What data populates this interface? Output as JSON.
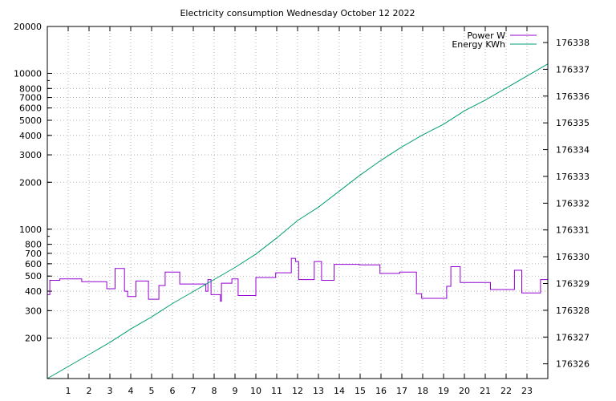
{
  "chart_data": {
    "type": "line",
    "title": "Electricity consumption Wednesday October 12 2022",
    "xlabel": "",
    "ylabel": "",
    "x_range": [
      0,
      24
    ],
    "x_ticks": [
      1,
      2,
      3,
      4,
      5,
      6,
      7,
      8,
      9,
      10,
      11,
      12,
      13,
      14,
      15,
      16,
      17,
      18,
      19,
      20,
      21,
      22,
      23
    ],
    "y_left": {
      "scale": "log",
      "range": [
        110,
        20000
      ],
      "ticks": [
        200,
        300,
        400,
        500,
        600,
        700,
        800,
        1000,
        2000,
        3000,
        4000,
        5000,
        6000,
        7000,
        8000,
        10000,
        20000
      ]
    },
    "y_right": {
      "scale": "linear",
      "range": [
        176325.45,
        176338.6
      ],
      "ticks": [
        176326,
        176327,
        176328,
        176329,
        176330,
        176331,
        176332,
        176333,
        176334,
        176335,
        176336,
        176337,
        176338
      ]
    },
    "grid": true,
    "legend_position": "top-right",
    "series": [
      {
        "name": "Power W",
        "axis": "left",
        "color": "#9400d3",
        "step": true,
        "points": [
          [
            0,
            380
          ],
          [
            0.12,
            470
          ],
          [
            0.6,
            480
          ],
          [
            1.65,
            460
          ],
          [
            2.85,
            415
          ],
          [
            3.25,
            560
          ],
          [
            3.7,
            400
          ],
          [
            3.85,
            370
          ],
          [
            4.25,
            465
          ],
          [
            4.85,
            355
          ],
          [
            5.35,
            435
          ],
          [
            5.65,
            530
          ],
          [
            6.35,
            445
          ],
          [
            7.6,
            400
          ],
          [
            7.7,
            475
          ],
          [
            7.85,
            380
          ],
          [
            8.3,
            345
          ],
          [
            8.35,
            450
          ],
          [
            8.85,
            480
          ],
          [
            9.15,
            375
          ],
          [
            10.0,
            490
          ],
          [
            10.95,
            525
          ],
          [
            11.7,
            650
          ],
          [
            11.9,
            620
          ],
          [
            12.05,
            475
          ],
          [
            12.8,
            620
          ],
          [
            13.15,
            470
          ],
          [
            13.75,
            595
          ],
          [
            14.95,
            590
          ],
          [
            15.95,
            520
          ],
          [
            16.9,
            530
          ],
          [
            17.7,
            385
          ],
          [
            17.95,
            360
          ],
          [
            19.15,
            430
          ],
          [
            19.35,
            575
          ],
          [
            19.8,
            455
          ],
          [
            21.25,
            410
          ],
          [
            22.4,
            545
          ],
          [
            22.75,
            390
          ],
          [
            23.65,
            475
          ],
          [
            24,
            470
          ]
        ]
      },
      {
        "name": "Energy KWh",
        "axis": "right",
        "color": "#009e73",
        "step": false,
        "points": [
          [
            0,
            176325.45
          ],
          [
            1,
            176325.9
          ],
          [
            2,
            176326.35
          ],
          [
            3,
            176326.8
          ],
          [
            4,
            176327.3
          ],
          [
            5,
            176327.75
          ],
          [
            6,
            176328.25
          ],
          [
            7,
            176328.7
          ],
          [
            8,
            176329.15
          ],
          [
            9,
            176329.6
          ],
          [
            10,
            176330.1
          ],
          [
            11,
            176330.7
          ],
          [
            12,
            176331.35
          ],
          [
            13,
            176331.85
          ],
          [
            14,
            176332.45
          ],
          [
            15,
            176333.05
          ],
          [
            16,
            176333.6
          ],
          [
            17,
            176334.1
          ],
          [
            18,
            176334.55
          ],
          [
            19,
            176334.95
          ],
          [
            20,
            176335.45
          ],
          [
            21,
            176335.85
          ],
          [
            22,
            176336.3
          ],
          [
            23,
            176336.75
          ],
          [
            24,
            176337.2
          ]
        ]
      }
    ]
  }
}
